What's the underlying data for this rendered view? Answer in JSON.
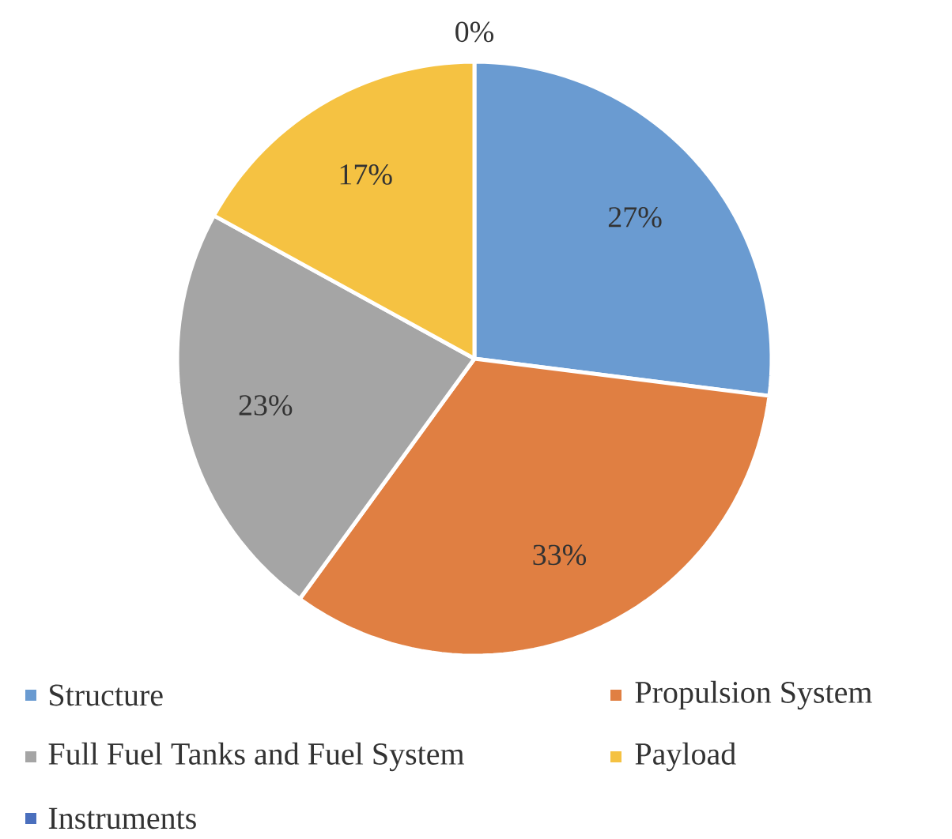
{
  "chart_data": {
    "type": "pie",
    "categories": [
      "Structure",
      "Propulsion System",
      "Full Fuel Tanks and Fuel System",
      "Payload",
      "Instruments"
    ],
    "values": [
      27,
      33,
      23,
      17,
      0
    ],
    "colors": [
      "#6a9bd1",
      "#e07f42",
      "#a5a5a5",
      "#f5c242",
      "#4a6fbd"
    ],
    "value_labels": [
      "27%",
      "33%",
      "23%",
      "17%",
      "0%"
    ],
    "legend": "bottom"
  }
}
